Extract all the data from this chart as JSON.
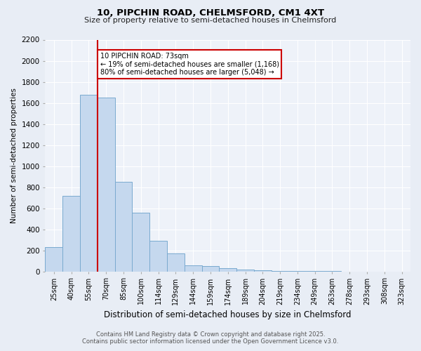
{
  "title1": "10, PIPCHIN ROAD, CHELMSFORD, CM1 4XT",
  "title2": "Size of property relative to semi-detached houses in Chelmsford",
  "xlabel": "Distribution of semi-detached houses by size in Chelmsford",
  "ylabel": "Number of semi-detached properties",
  "categories": [
    "25sqm",
    "40sqm",
    "55sqm",
    "70sqm",
    "85sqm",
    "100sqm",
    "114sqm",
    "129sqm",
    "144sqm",
    "159sqm",
    "174sqm",
    "189sqm",
    "204sqm",
    "219sqm",
    "234sqm",
    "249sqm",
    "263sqm",
    "278sqm",
    "293sqm",
    "308sqm",
    "323sqm"
  ],
  "values": [
    230,
    720,
    1680,
    1650,
    850,
    560,
    290,
    170,
    60,
    50,
    30,
    15,
    10,
    5,
    3,
    2,
    2,
    1,
    1,
    0,
    0
  ],
  "bar_color": "#c5d8ee",
  "bar_edge_color": "#7aaacf",
  "vline_color": "#cc0000",
  "annotation_box_text": "10 PIPCHIN ROAD: 73sqm\n← 19% of semi-detached houses are smaller (1,168)\n80% of semi-detached houses are larger (5,048) →",
  "annotation_box_color": "#cc0000",
  "ylim": [
    0,
    2200
  ],
  "yticks": [
    0,
    200,
    400,
    600,
    800,
    1000,
    1200,
    1400,
    1600,
    1800,
    2000,
    2200
  ],
  "bg_color": "#e8edf5",
  "plot_bg_color": "#eef2f9",
  "grid_color": "#ffffff",
  "footnote1": "Contains HM Land Registry data © Crown copyright and database right 2025.",
  "footnote2": "Contains public sector information licensed under the Open Government Licence v3.0."
}
